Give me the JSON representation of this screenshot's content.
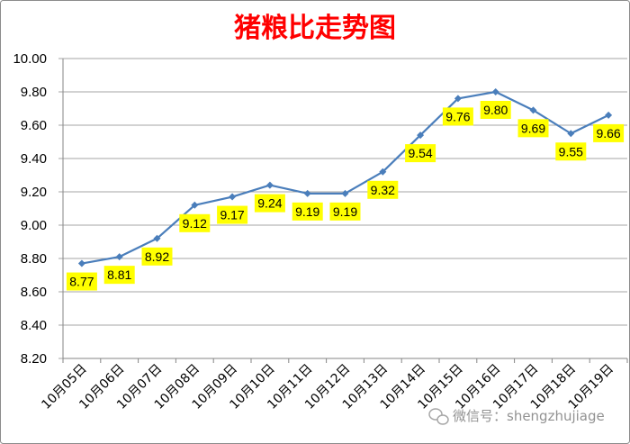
{
  "chart_data": {
    "type": "line",
    "title": "猪粮比走势图",
    "xlabel": "",
    "ylabel": "",
    "categories": [
      "10月05日",
      "10月06日",
      "10月07日",
      "10月08日",
      "10月09日",
      "10月10日",
      "10月11日",
      "10月12日",
      "10月13日",
      "10月14日",
      "10月15日",
      "10月16日",
      "10月17日",
      "10月18日",
      "10月19日"
    ],
    "values": [
      8.77,
      8.81,
      8.92,
      9.12,
      9.17,
      9.24,
      9.19,
      9.19,
      9.32,
      9.54,
      9.76,
      9.8,
      9.69,
      9.55,
      9.66
    ],
    "ylim": [
      8.2,
      10.0
    ],
    "yticks": [
      "10.00",
      "9.80",
      "9.60",
      "9.40",
      "9.20",
      "9.00",
      "8.80",
      "8.60",
      "8.40",
      "8.20"
    ],
    "grid": true,
    "legend": "none",
    "data_labels": true,
    "marker": "diamond",
    "line_color": "#4a7ebb",
    "label_background": "#ffff00",
    "title_color": "#ff0000"
  },
  "watermark": {
    "text": "微信号：shengzhujiage",
    "icon": "wechat-icon"
  }
}
